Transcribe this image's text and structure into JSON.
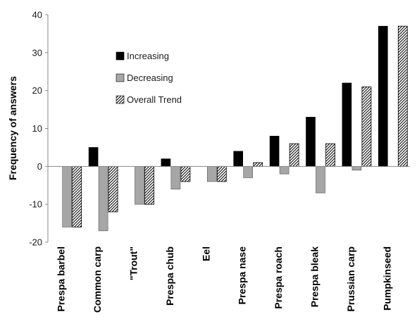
{
  "chart_data": {
    "type": "bar",
    "ylabel": "Frequency of answers",
    "xlabel": "",
    "ylim": [
      -20,
      40
    ],
    "yticks": [
      -20,
      -10,
      0,
      10,
      20,
      30,
      40
    ],
    "grid": false,
    "legend": "inside-top-left",
    "categories": [
      "Prespa barbel",
      "Common carp",
      "\"Trout\"",
      "Prespa chub",
      "Eel",
      "Prespa nase",
      "Prespa roach",
      "Prespa bleak",
      "Prussian carp",
      "Pumpkinseed"
    ],
    "series": [
      {
        "name": "Increasing",
        "style": "solid",
        "color": "#000000",
        "values": [
          0,
          5,
          0,
          2,
          0,
          4,
          8,
          13,
          22,
          37
        ]
      },
      {
        "name": "Decreasing",
        "style": "solid",
        "color": "#a6a6a6",
        "values": [
          -16,
          -17,
          -10,
          -6,
          -4,
          -3,
          -2,
          -7,
          -1,
          0
        ]
      },
      {
        "name": "Overall Trend",
        "style": "hatched",
        "color": "#000000",
        "values": [
          -16,
          -12,
          -10,
          -4,
          -4,
          1,
          6,
          6,
          21,
          37
        ]
      }
    ]
  }
}
